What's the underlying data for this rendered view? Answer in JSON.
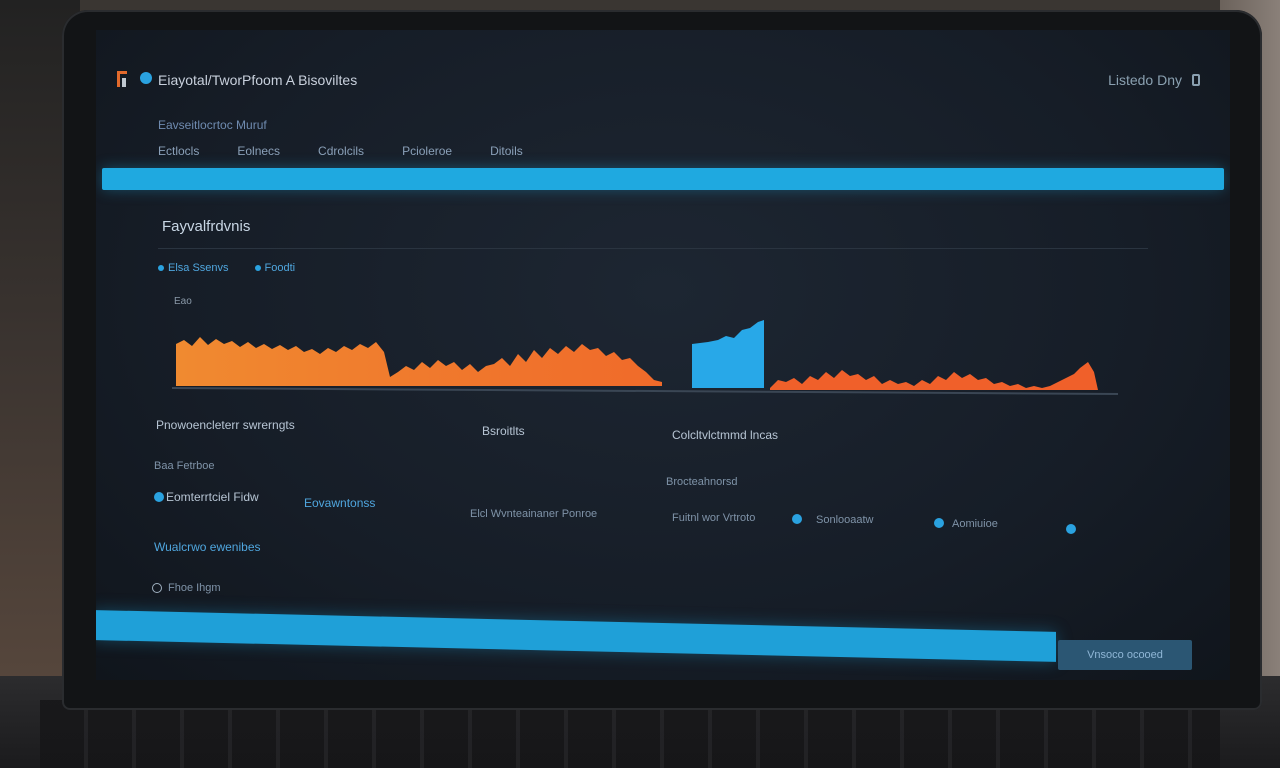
{
  "app": {
    "title": "Eiayotal/TworPfoom A Bisoviltes",
    "top_right": "Listedo Dny"
  },
  "breadcrumb": "Eavseitlocrtoc Muruf",
  "nav_tabs": [
    "Ectlocls",
    "Eolnecs",
    "Cdrolcils",
    "Pcioleroe",
    "Ditoils"
  ],
  "section_title": "Fayvalfrdvnis",
  "legend": [
    "Elsa Ssenvs",
    "Foodti"
  ],
  "chart": {
    "top_label": "Eao"
  },
  "stats": {
    "left_heading": "Pnowoencleterr swrerngts",
    "left_sub": "Baa Fetrboe",
    "left_item": "Eomterrtciel Fidw",
    "left_item_value": "Eovawntonss",
    "left_footer": "Wualcrwo ewenibes",
    "radio_label": "Fhoe Ihgm",
    "mid_heading": "Bsroitlts",
    "mid_item": "Elcl Wvnteainaner Ponroe",
    "right_heading": "Colcltvlctmmd lncas",
    "right_sub": "Brocteahnorsd",
    "right_item1": "Fuitnl wor Vrtroto",
    "right_item2": "Sonlooaatw",
    "right_item3": "Aomiuioe"
  },
  "bottom_button": "Vnsoco ocooed",
  "colors": {
    "accent": "#1fa9e0",
    "series_orange": "#f07030",
    "series_blue": "#28a8e8"
  }
}
